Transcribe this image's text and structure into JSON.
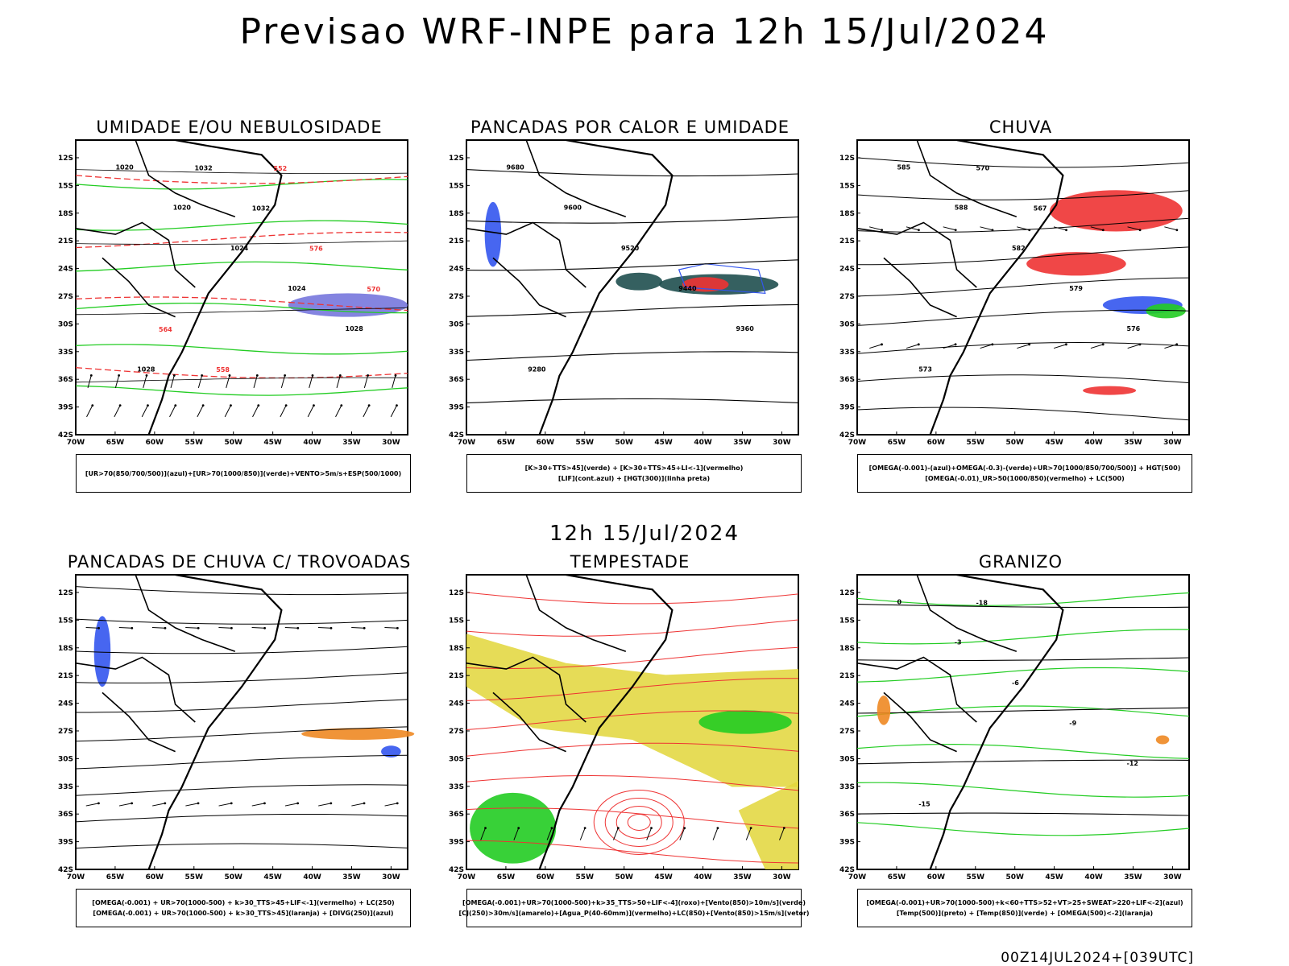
{
  "title": "Previsao WRF-INPE  para 12h 15/Jul/2024",
  "mid_title": "12h 15/Jul/2024",
  "footer": "00Z14JUL2024+[039UTC]",
  "axes": {
    "lat_labels": [
      "12S",
      "15S",
      "18S",
      "21S",
      "24S",
      "27S",
      "30S",
      "33S",
      "36S",
      "39S",
      "42S"
    ],
    "lon_labels": [
      "70W",
      "65W",
      "60W",
      "55W",
      "50W",
      "45W",
      "40W",
      "35W",
      "30W"
    ]
  },
  "colors": {
    "green": "#22cc22",
    "red": "#ee3333",
    "blue": "#3355ee",
    "yellow": "#e2d63a",
    "dark_teal": "#1f4f4f",
    "orange": "#ee8822",
    "purple": "#7777dd",
    "black": "#000000"
  },
  "panels": [
    {
      "title": "UMIDADE E/OU NEBULOSIDADE",
      "legend": [
        "[UR>70(850/700/500)](azul)+[UR>70(1000/850)](verde)+VENTO>5m/s+ESP(500/1000)"
      ],
      "labels": [
        "1020",
        "1020",
        "1024",
        "1024",
        "1028",
        "1028",
        "1032",
        "1032",
        "576",
        "570",
        "564",
        "558",
        "552"
      ]
    },
    {
      "title": "PANCADAS POR CALOR E UMIDADE",
      "legend": [
        "[K>30+TTS>45](verde) + [K>30+TTS>45+LI<-1](vermelho)",
        "[LIF](cont.azul) + [HGT(300)](linha preta)"
      ],
      "labels": [
        "9680",
        "9600",
        "9520",
        "9440",
        "9360",
        "9280"
      ]
    },
    {
      "title": "CHUVA",
      "legend": [
        "[OMEGA(-0.001)-(azul)+OMEGA(-0.3)-(verde)+UR>70(1000/850/700/500)] + HGT(500)",
        "[OMEGA(-0.01)_UR>50(1000/850)(vermelho) + LC(500)"
      ],
      "labels": [
        "585",
        "588",
        "582",
        "579",
        "576",
        "573",
        "570",
        "567"
      ]
    },
    {
      "title": "PANCADAS DE CHUVA C/ TROVOADAS",
      "legend": [
        "[OMEGA(-0.001) + UR>70(1000-500) + k>30_TTS>45+LIF<-1](vermelho) + LC(250)",
        "[OMEGA(-0.001) + UR>70(1000-500) + k>30_TTS>45](laranja) + [DIVG(250)](azul)"
      ],
      "labels": []
    },
    {
      "title": "TEMPESTADE",
      "legend": [
        "[OMEGA(-0.001)+UR>70(1000-500)+k>35_TTS>50+LIF<-4](roxo)+[Vento(850)>10m/s](verde)",
        "[CJ(250)>30m/s](amarelo)+[Agua_P(40-60mm)](vermelho)+LC(850)+[Vento(850)>15m/s](vetor)"
      ],
      "labels": []
    },
    {
      "title": "GRANIZO",
      "legend": [
        "[OMEGA(-0.001)+UR>70(1000-500)+k<60+TTS>52+VT>25+SWEAT>220+LIF<-2](azul)",
        "[Temp(500)](preto) + [Temp(850)](verde) + [OMEGA(500)<-2](laranja)"
      ],
      "labels": [
        "0",
        "-3",
        "-6",
        "-9",
        "-12",
        "-15",
        "-18"
      ]
    }
  ]
}
